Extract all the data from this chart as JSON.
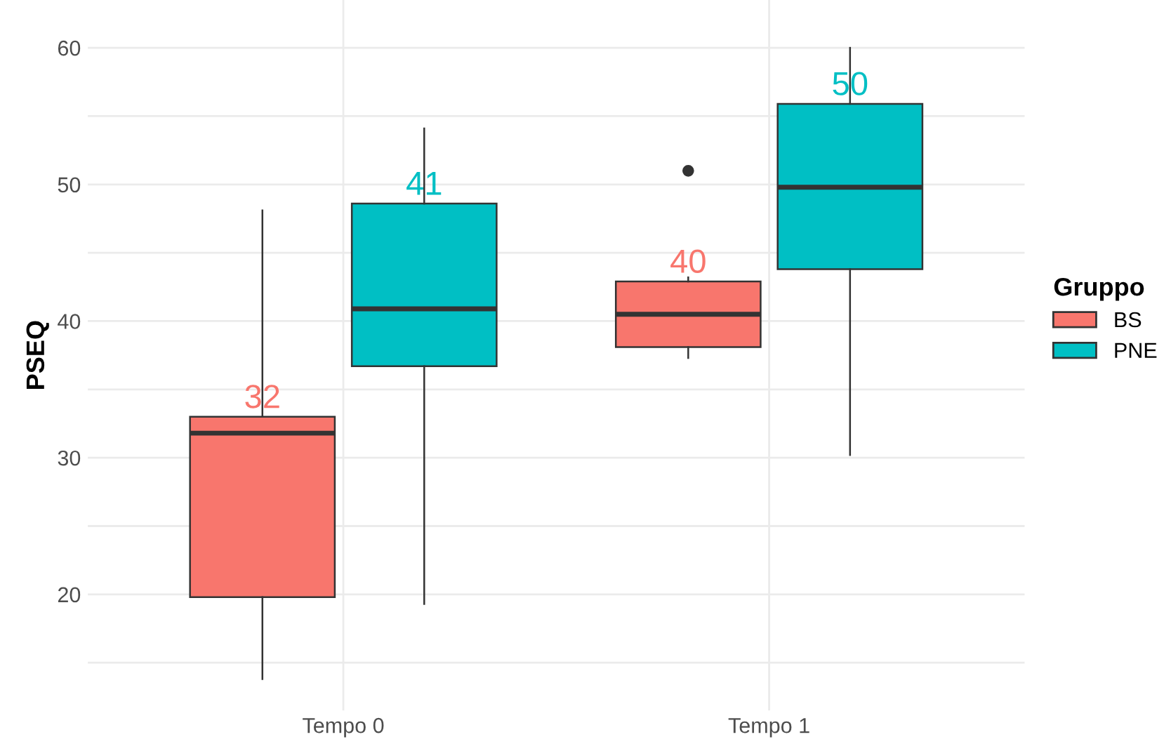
{
  "chart_data": {
    "type": "box",
    "ylabel": "PSEQ",
    "legend_title": "Gruppo",
    "categories": [
      "Tempo 0",
      "Tempo 1"
    ],
    "series": [
      {
        "name": "BS",
        "color": "#f8766d",
        "boxes": [
          {
            "low": 13.8,
            "q1": 19.8,
            "median": 31.8,
            "q3": 33.0,
            "high": 48.1
          },
          {
            "low": 37.3,
            "q1": 38.1,
            "median": 40.5,
            "q3": 42.9,
            "high": 43.2,
            "outliers": [
              51.0
            ]
          }
        ]
      },
      {
        "name": "PNE",
        "color": "#00bfc4",
        "boxes": [
          {
            "low": 19.3,
            "q1": 36.7,
            "median": 40.9,
            "q3": 48.6,
            "high": 54.1
          },
          {
            "low": 30.2,
            "q1": 43.8,
            "median": 49.8,
            "q3": 55.9,
            "high": 60.0
          }
        ]
      }
    ],
    "annotations": [
      "32",
      "41",
      "40",
      "50"
    ],
    "ylim": [
      11.5,
      63.5
    ],
    "yticks": [
      {
        "value": 15,
        "label": null
      },
      20,
      {
        "value": 25,
        "label": null
      },
      30,
      {
        "value": 35,
        "label": null
      },
      40,
      {
        "value": 45,
        "label": null
      },
      50,
      {
        "value": 55,
        "label": null
      },
      60
    ],
    "grid": true,
    "legend": "right"
  }
}
